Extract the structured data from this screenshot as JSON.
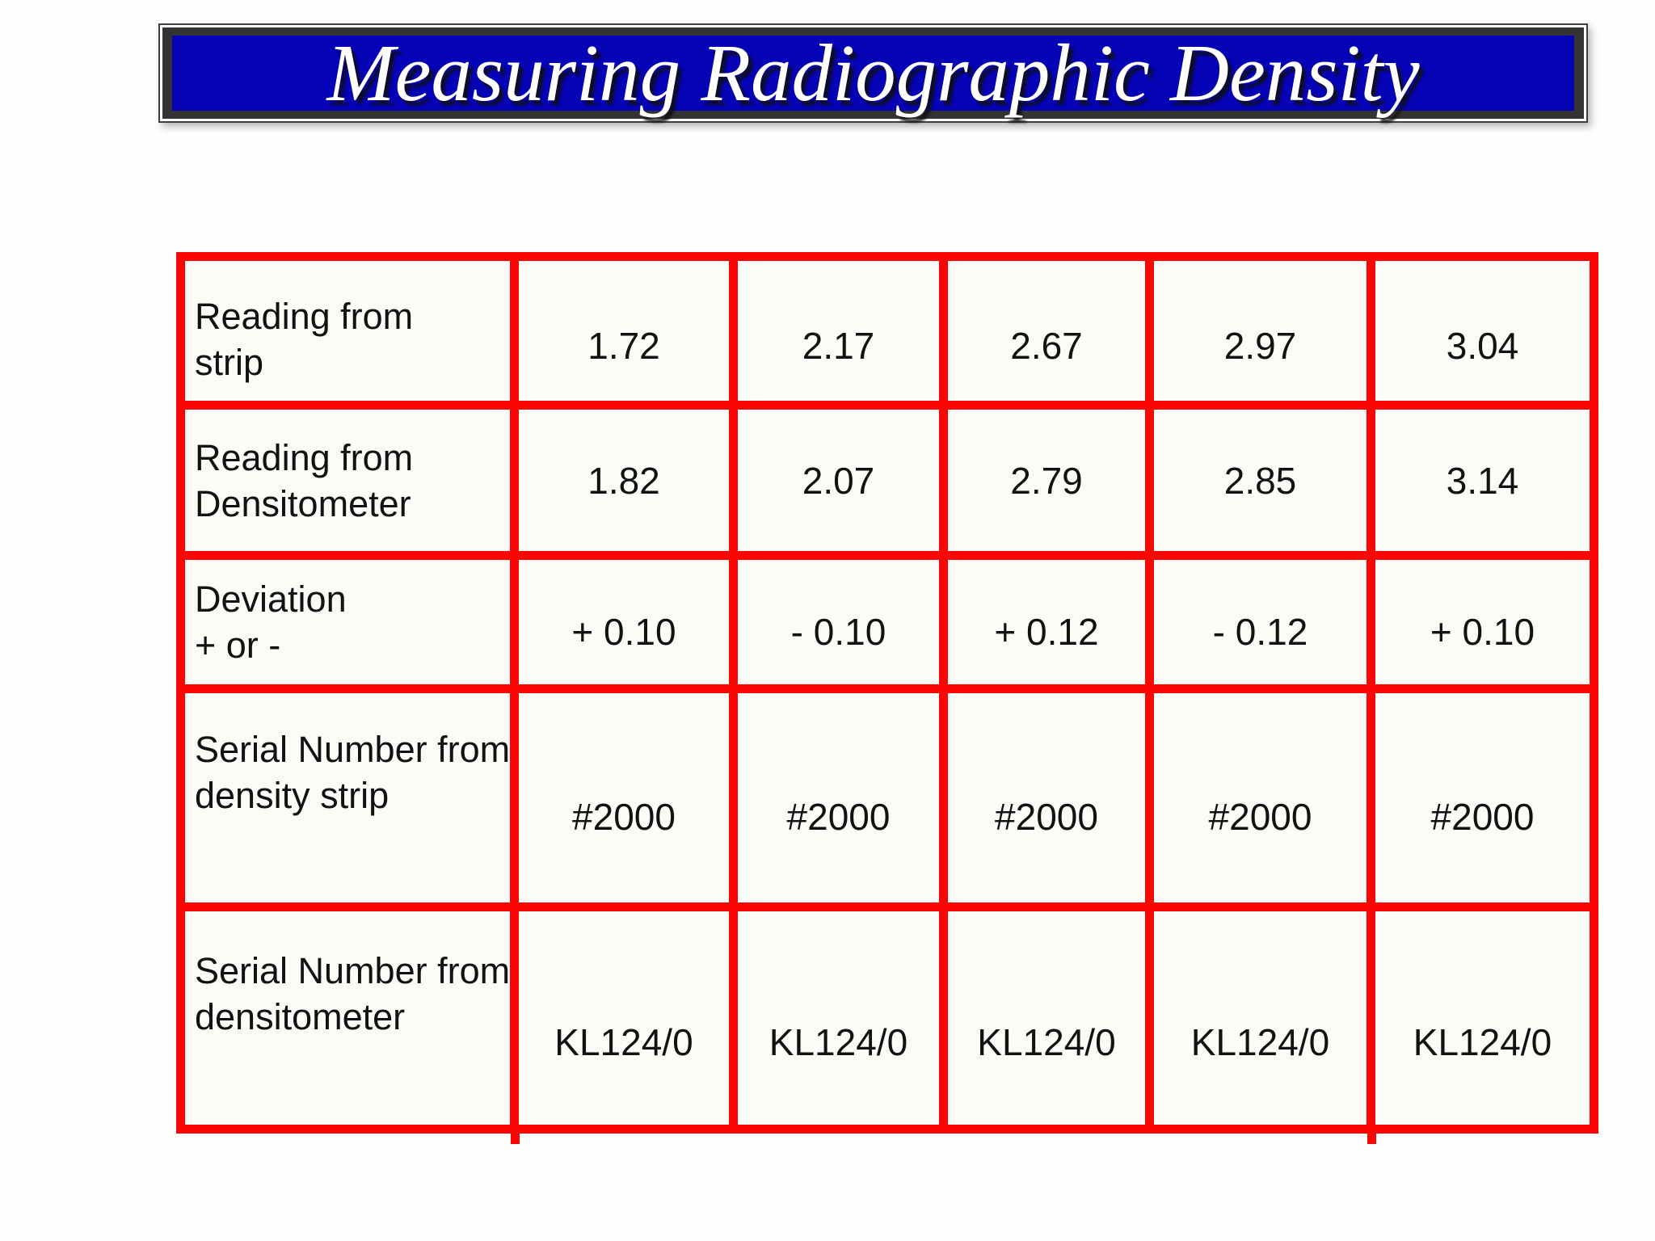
{
  "title": "Measuring Radiographic Density",
  "table": {
    "rows": [
      {
        "label_line1": "Reading from",
        "label_line2": "strip",
        "values": [
          "1.72",
          "2.17",
          "2.67",
          "2.97",
          "3.04"
        ]
      },
      {
        "label_line1": "Reading from",
        "label_line2": "Densitometer",
        "values": [
          "1.82",
          "2.07",
          "2.79",
          "2.85",
          "3.14"
        ]
      },
      {
        "label_line1": "Deviation",
        "label_line2": "+ or -",
        "values": [
          "+ 0.10",
          "- 0.10",
          "+ 0.12",
          "- 0.12",
          "+ 0.10"
        ]
      },
      {
        "label_line1": "Serial Number from",
        "label_line2": "density strip",
        "values": [
          "#2000",
          "#2000",
          "#2000",
          "#2000",
          "#2000"
        ]
      },
      {
        "label_line1": "Serial Number from",
        "label_line2": "densitometer",
        "values": [
          "KL124/0",
          "KL124/0",
          "KL124/0",
          "KL124/0",
          "KL124/0"
        ]
      }
    ]
  },
  "colors": {
    "title_background": "#0602b6",
    "title_frame": "#333333",
    "title_text": "#ffffff",
    "grid_lines_red": "#fb0505",
    "cell_background": "#fcfbf7",
    "cell_text": "#121212"
  }
}
